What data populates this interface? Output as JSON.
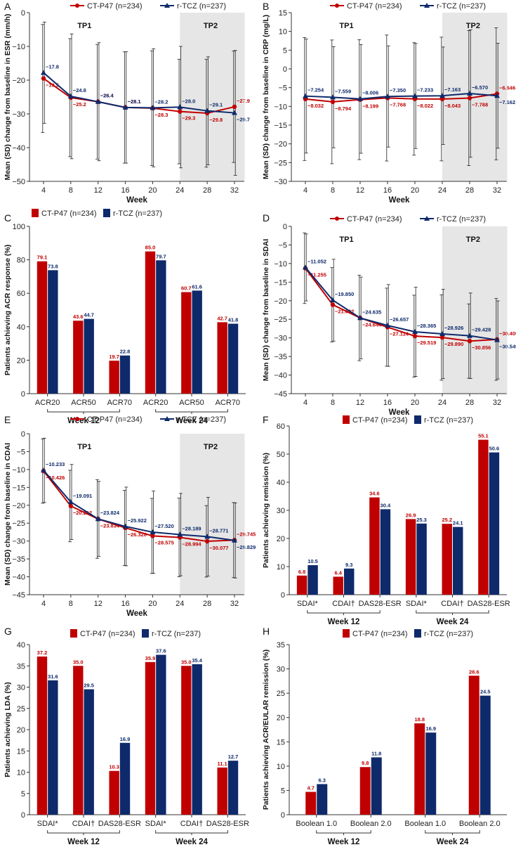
{
  "colors": {
    "ct": "#c00000",
    "rtcz": "#0e2a6b",
    "shade": "#e6e6e6",
    "axis": "#333333",
    "err": "#222222"
  },
  "legend": {
    "ct": "CT-P47 (n=234)",
    "rtcz": "r-TCZ (n=237)"
  },
  "chart_data": [
    {
      "id": "A",
      "panel": "A",
      "type": "line",
      "ylabel": "Mean (SD) change from baseline in ESR (mm/h)",
      "xlabel": "Week",
      "x": [
        4,
        8,
        12,
        16,
        20,
        24,
        28,
        32
      ],
      "ylim": [
        -50,
        0
      ],
      "yticks": [
        0,
        -10,
        -20,
        -30,
        -40,
        -50
      ],
      "yticklabels": [
        "0",
        "−10",
        "−20",
        "−30",
        "−40",
        "−50"
      ],
      "periods": [
        "TP1",
        "TP2"
      ],
      "series": [
        {
          "key": "ct",
          "name": "CT-P47 (n=234)",
          "values": [
            -19.5,
            -25.2,
            -26.4,
            -28.1,
            -28.3,
            -29.3,
            -29.8,
            -27.9
          ],
          "labels": [
            "−19.5",
            "−25.2",
            "−26.4",
            "−28.1",
            "−28.3",
            "−29.3",
            "−29.8",
            "−27.9"
          ],
          "sd": [
            16,
            17.5,
            17,
            16.5,
            17,
            15.5,
            16,
            16.5
          ]
        },
        {
          "key": "rtcz",
          "name": "r-TCZ (n=237)",
          "values": [
            -17.8,
            -24.8,
            -26.4,
            -28.1,
            -28.2,
            -28.0,
            -29.1,
            -29.7
          ],
          "labels": [
            "−17.8",
            "−24.8",
            "−26.4",
            "−28.1",
            "−28.2",
            "−28.0",
            "−29.1",
            "−29.7"
          ],
          "sd": [
            15,
            18.5,
            17.5,
            16.5,
            17.5,
            18,
            16,
            18.5
          ]
        }
      ]
    },
    {
      "id": "B",
      "panel": "B",
      "type": "line",
      "ylabel": "Mean (SD) change from baseline in CRP (mg/L)",
      "xlabel": "Week",
      "x": [
        4,
        8,
        12,
        16,
        20,
        24,
        28,
        32
      ],
      "ylim": [
        -30,
        15
      ],
      "yticks": [
        15,
        10,
        5,
        0,
        -5,
        -10,
        -15,
        -20,
        -25,
        -30
      ],
      "yticklabels": [
        "15",
        "10",
        "5",
        "0",
        "−5",
        "−10",
        "−15",
        "−20",
        "−25",
        "−30"
      ],
      "periods": [
        "TP1",
        "TP2"
      ],
      "series": [
        {
          "key": "ct",
          "name": "CT-P47 (n=234)",
          "values": [
            -8.032,
            -8.794,
            -8.199,
            -7.768,
            -8.022,
            -8.043,
            -7.788,
            -6.646
          ],
          "labels": [
            "−8.032",
            "−8.794",
            "−8.199",
            "−7.768",
            "−8.022",
            "−8.043",
            "−7.788",
            "−6.646"
          ],
          "sd": [
            16.4,
            16.5,
            16,
            16.8,
            15,
            16.5,
            18,
            17.6
          ]
        },
        {
          "key": "rtcz",
          "name": "r-TCZ (n=237)",
          "values": [
            -7.254,
            -7.559,
            -8.006,
            -7.35,
            -7.233,
            -7.163,
            -6.57,
            -7.162
          ],
          "labels": [
            "−7.254",
            "−7.559",
            "−8.006",
            "−7.350",
            "−7.233",
            "−7.163",
            "−6.570",
            "−7.162"
          ],
          "sd": [
            15.2,
            13.5,
            14.5,
            13.5,
            14,
            13,
            17,
            14
          ]
        }
      ]
    },
    {
      "id": "C",
      "panel": "C",
      "type": "bar",
      "ylabel": "Patients achieving ACR response (%)",
      "ylim": [
        0,
        100
      ],
      "yticks": [
        0,
        20,
        40,
        60,
        80,
        100
      ],
      "categories": [
        "ACR20",
        "ACR50",
        "ACR70",
        "ACR20",
        "ACR50",
        "ACR70"
      ],
      "groups": [
        "Week 12",
        "Week 24"
      ],
      "series": [
        {
          "key": "ct",
          "name": "CT-P47 (n=234)",
          "values": [
            79.1,
            43.6,
            19.7,
            85.0,
            60.7,
            42.7
          ],
          "labels": [
            "79.1",
            "43.6",
            "19.7",
            "85.0",
            "60.7",
            "42.7"
          ]
        },
        {
          "key": "rtcz",
          "name": "r-TCZ (n=237)",
          "values": [
            73.8,
            44.7,
            22.8,
            79.7,
            61.6,
            41.8
          ],
          "labels": [
            "73.8",
            "44.7",
            "22.8",
            "79.7",
            "61.6",
            "41.8"
          ]
        }
      ]
    },
    {
      "id": "D",
      "panel": "D",
      "type": "line",
      "ylabel": "Mean (SD) change from baseline in SDAI",
      "xlabel": "Week",
      "x": [
        4,
        8,
        12,
        16,
        20,
        24,
        28,
        32
      ],
      "ylim": [
        -45,
        0
      ],
      "yticks": [
        0,
        -5,
        -10,
        -15,
        -20,
        -25,
        -30,
        -35,
        -40,
        -45
      ],
      "yticklabels": [
        "0",
        "−5",
        "−10",
        "−15",
        "−20",
        "−25",
        "−30",
        "−35",
        "−40",
        "−45"
      ],
      "periods": [
        "TP1",
        "TP2"
      ],
      "series": [
        {
          "key": "ct",
          "name": "CT-P47 (n=234)",
          "values": [
            -11.255,
            -21.092,
            -24.644,
            -27.114,
            -29.519,
            -29.89,
            -30.856,
            -30.409
          ],
          "labels": [
            "−11.255",
            "−21.092",
            "−24.644",
            "−27.114",
            "−29.519",
            "−29.890",
            "−30.856",
            "−30.409"
          ],
          "sd": [
            9.5,
            10,
            11.5,
            10.5,
            11,
            11.5,
            10,
            11
          ]
        },
        {
          "key": "rtcz",
          "name": "r-TCZ (n=237)",
          "values": [
            -11.052,
            -19.85,
            -24.635,
            -26.657,
            -28.365,
            -28.926,
            -29.428,
            -30.549
          ],
          "labels": [
            "−11.052",
            "−19.850",
            "−24.635",
            "−26.657",
            "−28.365",
            "−28.926",
            "−29.428",
            "−30.549"
          ],
          "sd": [
            9,
            11,
            11,
            11,
            12,
            12,
            11.5,
            10.5
          ]
        }
      ]
    },
    {
      "id": "E",
      "panel": "E",
      "type": "line",
      "ylabel": "Mean (SD) change from baseline in CDAI",
      "xlabel": "Week",
      "x": [
        4,
        8,
        12,
        16,
        20,
        24,
        28,
        32
      ],
      "ylim": [
        -45,
        0
      ],
      "yticks": [
        0,
        -5,
        -10,
        -15,
        -20,
        -25,
        -30,
        -35,
        -40,
        -45
      ],
      "yticklabels": [
        "0",
        "−5",
        "−10",
        "−15",
        "−20",
        "−25",
        "−30",
        "−35",
        "−40",
        "−45"
      ],
      "periods": [
        "TP1",
        "TP2"
      ],
      "series": [
        {
          "key": "ct",
          "name": "CT-P47 (n=234)",
          "values": [
            -10.426,
            -20.212,
            -23.834,
            -26.328,
            -28.575,
            -28.994,
            -30.077,
            -29.745
          ],
          "labels": [
            "−10.426",
            "−20.212",
            "−23.834",
            "−26.328",
            "−28.575",
            "−28.994",
            "−30.077",
            "−29.745"
          ],
          "sd": [
            9,
            10,
            11,
            10.5,
            10.5,
            11,
            10,
            10.5
          ]
        },
        {
          "key": "rtcz",
          "name": "r-TCZ (n=237)",
          "values": [
            -10.233,
            -19.091,
            -23.824,
            -25.922,
            -27.52,
            -28.189,
            -28.771,
            -29.829
          ],
          "labels": [
            "−10.233",
            "−19.091",
            "−23.824",
            "−25.922",
            "−27.520",
            "−28.189",
            "−28.771",
            "−29.829"
          ],
          "sd": [
            9,
            10.5,
            10.5,
            11,
            11.5,
            11.5,
            11,
            10.5
          ]
        }
      ]
    },
    {
      "id": "F",
      "panel": "F",
      "type": "bar",
      "ylabel": "Patients achieving remission (%)",
      "ylim": [
        0,
        60
      ],
      "yticks": [
        0,
        10,
        20,
        30,
        40,
        50,
        60
      ],
      "categories": [
        "SDAI*",
        "CDAI†",
        "DAS28-ESR",
        "SDAI*",
        "CDAI†",
        "DAS28-ESR"
      ],
      "groups": [
        "Week 12",
        "Week 24"
      ],
      "bracket_span": 2,
      "series": [
        {
          "key": "ct",
          "name": "CT-P47 (n=234)",
          "values": [
            6.8,
            6.4,
            34.6,
            26.9,
            25.2,
            55.1
          ],
          "labels": [
            "6.8",
            "6.4",
            "34.6",
            "26.9",
            "25.2",
            "55.1"
          ]
        },
        {
          "key": "rtcz",
          "name": "r-TCZ (n=237)",
          "values": [
            10.5,
            9.3,
            30.4,
            25.3,
            24.1,
            50.6
          ],
          "labels": [
            "10.5",
            "9.3",
            "30.4",
            "25.3",
            "24.1",
            "50.6"
          ]
        }
      ]
    },
    {
      "id": "G",
      "panel": "G",
      "type": "bar",
      "ylabel": "Patients achieving LDA (%)",
      "ylim": [
        0,
        40
      ],
      "yticks": [
        0,
        5,
        10,
        15,
        20,
        25,
        30,
        35,
        40
      ],
      "categories": [
        "SDAI*",
        "CDAI†",
        "DAS28-ESR",
        "SDAI*",
        "CDAI†",
        "DAS28-ESR"
      ],
      "groups": [
        "Week 12",
        "Week 24"
      ],
      "series": [
        {
          "key": "ct",
          "name": "CT-P47 (n=234)",
          "values": [
            37.2,
            35.0,
            10.3,
            35.9,
            35.0,
            11.1
          ],
          "labels": [
            "37.2",
            "35.0",
            "10.3",
            "35.9",
            "35.0",
            "11.1"
          ]
        },
        {
          "key": "rtcz",
          "name": "r-TCZ (n=237)",
          "values": [
            31.6,
            29.5,
            16.9,
            37.6,
            35.4,
            12.7
          ],
          "labels": [
            "31.6",
            "29.5",
            "16.9",
            "37.6",
            "35.4",
            "12.7"
          ]
        }
      ]
    },
    {
      "id": "H",
      "panel": "H",
      "type": "bar",
      "ylabel": "Patients achieving ACR/EULAR remission (%)",
      "ylim": [
        0,
        35
      ],
      "yticks": [
        0,
        5,
        10,
        15,
        20,
        25,
        30,
        35
      ],
      "categories": [
        "Boolean 1.0",
        "Boolean 2.0",
        "Boolean 1.0",
        "Boolean 2.0"
      ],
      "groups": [
        "Week 12",
        "Week 24"
      ],
      "series": [
        {
          "key": "ct",
          "name": "CT-P47 (n=234)",
          "values": [
            4.7,
            9.8,
            18.8,
            28.6
          ],
          "labels": [
            "4.7",
            "9.8",
            "18.8",
            "28.6"
          ]
        },
        {
          "key": "rtcz",
          "name": "r-TCZ (n=237)",
          "values": [
            6.3,
            11.8,
            16.9,
            24.5
          ],
          "labels": [
            "6.3",
            "11.8",
            "16.9",
            "24.5"
          ]
        }
      ]
    }
  ]
}
